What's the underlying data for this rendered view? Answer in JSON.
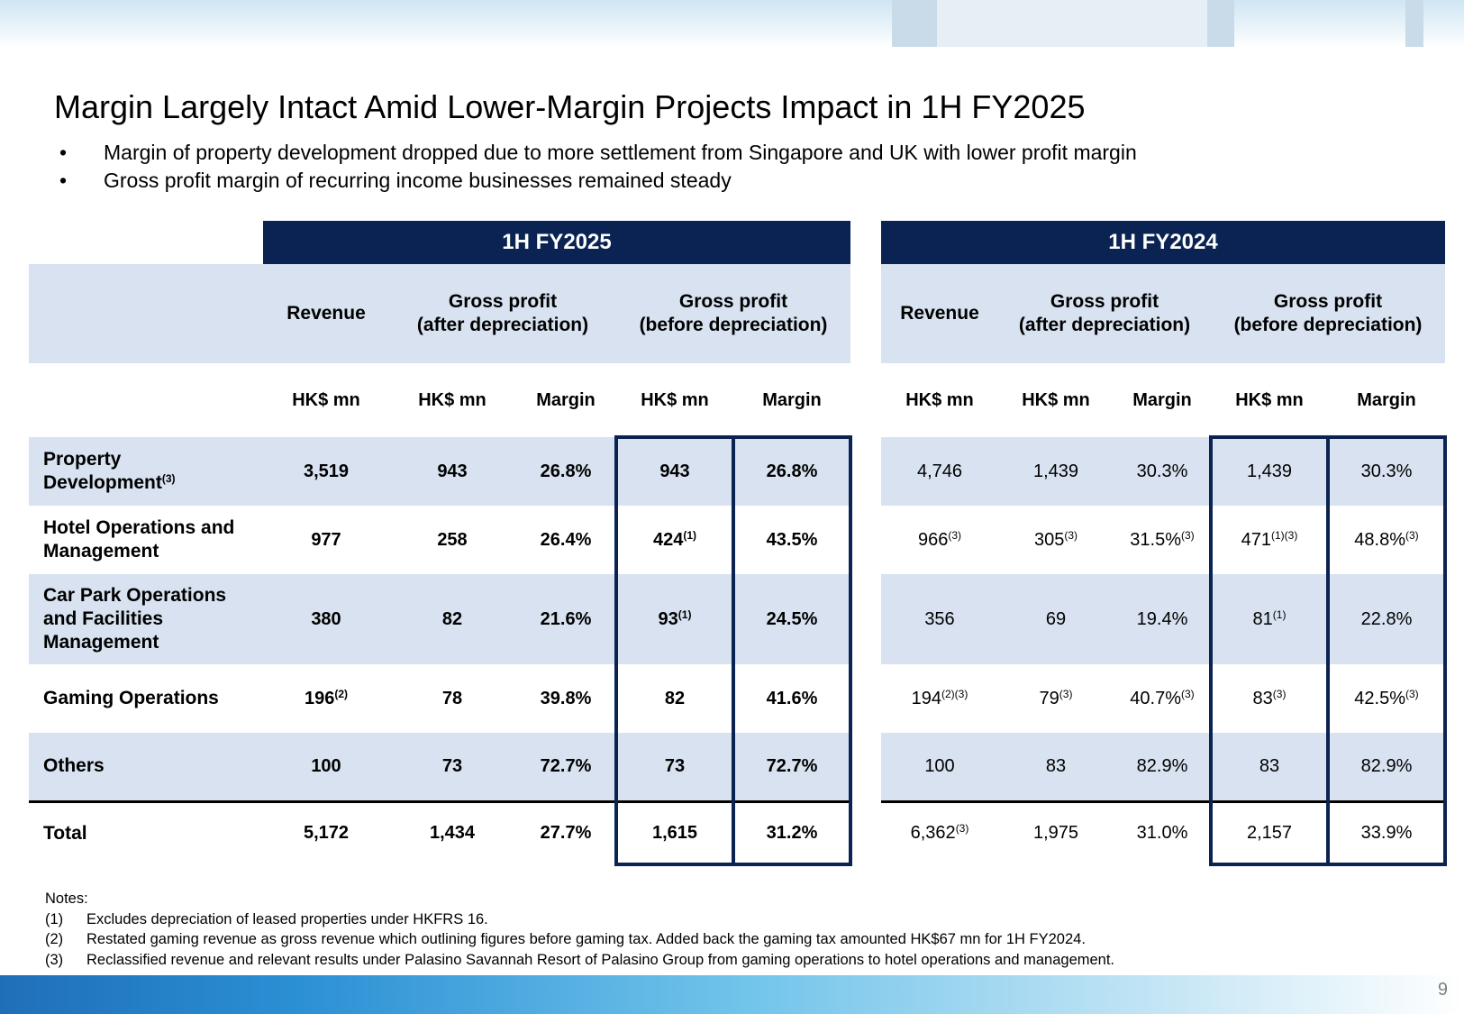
{
  "title": "Margin Largely Intact Amid Lower-Margin Projects Impact in 1H FY2025",
  "bullets": [
    "Margin of property development dropped due to more settlement from Singapore and UK with lower profit margin",
    "Gross profit margin of recurring income businesses remained steady"
  ],
  "bullet_symbol": "•",
  "table": {
    "periods": [
      "1H FY2025",
      "1H FY2024"
    ],
    "col_headers": {
      "revenue": "Revenue",
      "gp_after": [
        "Gross profit",
        "(after depreciation)"
      ],
      "gp_before": [
        "Gross profit",
        "(before depreciation)"
      ]
    },
    "units": {
      "hkd": "HK$ mn",
      "margin": "Margin"
    },
    "rows": [
      {
        "label": [
          "Property",
          "Development"
        ],
        "label_sup": "(3)",
        "fy25": [
          [
            "3,519",
            ""
          ],
          [
            "943",
            ""
          ],
          [
            "26.8%",
            ""
          ],
          [
            "943",
            ""
          ],
          [
            "26.8%",
            ""
          ]
        ],
        "fy24": [
          [
            "4,746",
            ""
          ],
          [
            "1,439",
            ""
          ],
          [
            "30.3%",
            ""
          ],
          [
            "1,439",
            ""
          ],
          [
            "30.3%",
            ""
          ]
        ]
      },
      {
        "label": [
          "Hotel Operations and",
          "Management"
        ],
        "label_sup": "",
        "fy25": [
          [
            "977",
            ""
          ],
          [
            "258",
            ""
          ],
          [
            "26.4%",
            ""
          ],
          [
            "424",
            "(1)"
          ],
          [
            "43.5%",
            ""
          ]
        ],
        "fy24": [
          [
            "966",
            "(3)"
          ],
          [
            "305",
            "(3)"
          ],
          [
            "31.5%",
            "(3)"
          ],
          [
            "471",
            "(1)(3)"
          ],
          [
            "48.8%",
            "(3)"
          ]
        ]
      },
      {
        "label": [
          "Car Park Operations",
          "and Facilities",
          "Management"
        ],
        "label_sup": "",
        "fy25": [
          [
            "380",
            ""
          ],
          [
            "82",
            ""
          ],
          [
            "21.6%",
            ""
          ],
          [
            "93",
            "(1)"
          ],
          [
            "24.5%",
            ""
          ]
        ],
        "fy24": [
          [
            "356",
            ""
          ],
          [
            "69",
            ""
          ],
          [
            "19.4%",
            ""
          ],
          [
            "81",
            "(1)"
          ],
          [
            "22.8%",
            ""
          ]
        ]
      },
      {
        "label": [
          "Gaming Operations"
        ],
        "label_sup": "",
        "fy25": [
          [
            "196",
            "(2)"
          ],
          [
            "78",
            ""
          ],
          [
            "39.8%",
            ""
          ],
          [
            "82",
            ""
          ],
          [
            "41.6%",
            ""
          ]
        ],
        "fy24": [
          [
            "194",
            "(2)(3)"
          ],
          [
            "79",
            "(3)"
          ],
          [
            "40.7%",
            "(3)"
          ],
          [
            "83",
            "(3)"
          ],
          [
            "42.5%",
            "(3)"
          ]
        ]
      },
      {
        "label": [
          "Others"
        ],
        "label_sup": "",
        "fy25": [
          [
            "100",
            ""
          ],
          [
            "73",
            ""
          ],
          [
            "72.7%",
            ""
          ],
          [
            "73",
            ""
          ],
          [
            "72.7%",
            ""
          ]
        ],
        "fy24": [
          [
            "100",
            ""
          ],
          [
            "83",
            ""
          ],
          [
            "82.9%",
            ""
          ],
          [
            "83",
            ""
          ],
          [
            "82.9%",
            ""
          ]
        ]
      },
      {
        "label": [
          "Total"
        ],
        "label_sup": "",
        "fy25": [
          [
            "5,172",
            ""
          ],
          [
            "1,434",
            ""
          ],
          [
            "27.7%",
            ""
          ],
          [
            "1,615",
            ""
          ],
          [
            "31.2%",
            ""
          ]
        ],
        "fy24": [
          [
            "6,362",
            "(3)"
          ],
          [
            "1,975",
            ""
          ],
          [
            "31.0%",
            ""
          ],
          [
            "2,157",
            ""
          ],
          [
            "33.9%",
            ""
          ]
        ]
      }
    ]
  },
  "notes_title": "Notes:",
  "notes": [
    {
      "num": "(1)",
      "text": "Excludes depreciation of leased properties under HKFRS 16."
    },
    {
      "num": "(2)",
      "text": "Restated gaming revenue as gross revenue which outlining figures before gaming tax. Added back the gaming tax amounted HK$67 mn for 1H FY2024."
    },
    {
      "num": "(3)",
      "text": "Reclassified revenue and relevant results under Palasino Savannah Resort of Palasino Group from gaming operations to hotel operations and management."
    }
  ],
  "page_number": "9",
  "colors": {
    "navy": "#0a2352",
    "light_blue": "#d8e2f0"
  }
}
